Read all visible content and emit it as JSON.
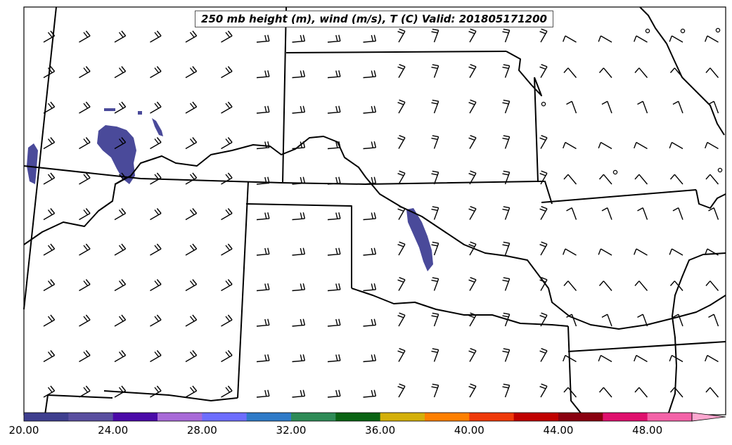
{
  "title": "250 mb height (m), wind (m/s), T (C) Valid: 201805171200",
  "colorbar": {
    "tick_labels": [
      "20.00",
      "24.00",
      "28.00",
      "32.00",
      "36.00",
      "40.00",
      "44.00",
      "48.00"
    ],
    "colors": [
      "#3f3f8f",
      "#5a4fa0",
      "#4b0aa8",
      "#a86ad8",
      "#6e6efe",
      "#2f7bc8",
      "#2e8b57",
      "#0a6414",
      "#d4b00a",
      "#fe8000",
      "#ef3a0a",
      "#c00000",
      "#8a0010",
      "#e0106e",
      "#f463a8",
      "#fca8d0"
    ]
  },
  "shading": {
    "color": "#4a4a9a"
  }
}
